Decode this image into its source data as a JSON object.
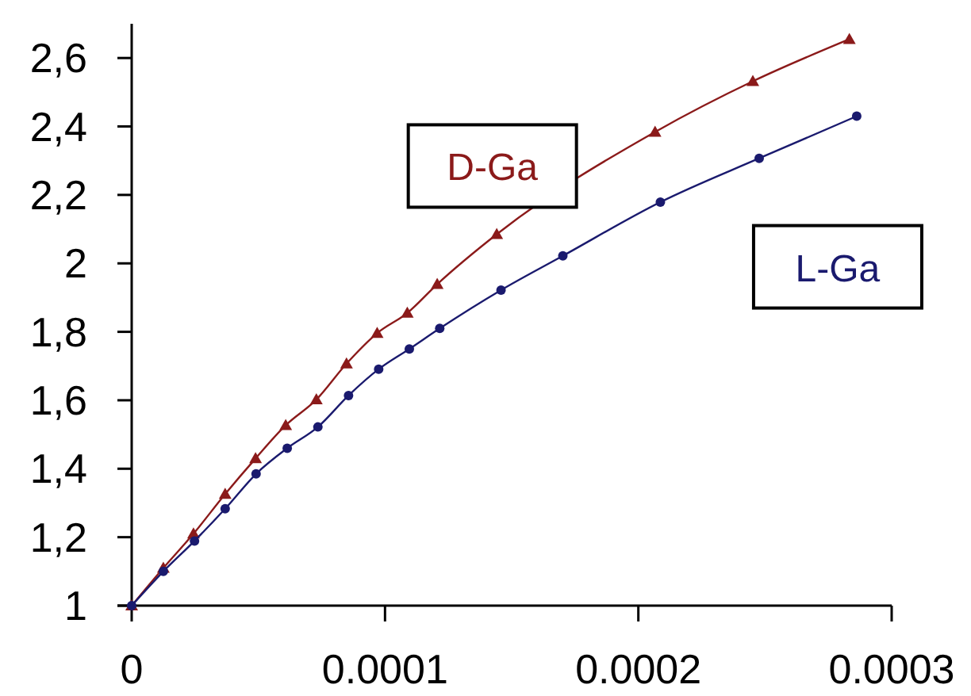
{
  "chart_data": {
    "type": "line",
    "xlim": [
      0,
      0.0003
    ],
    "xticks": [
      0,
      0.0001,
      0.0002,
      0.0003
    ],
    "ylim": [
      1,
      2.7
    ],
    "yticks": [
      {
        "value": 1,
        "label": "1"
      },
      {
        "value": 1.2,
        "label": "1,2"
      },
      {
        "value": 1.4,
        "label": "1,4"
      },
      {
        "value": 1.6,
        "label": "1,6"
      },
      {
        "value": 1.8,
        "label": "1,8"
      },
      {
        "value": 2,
        "label": "2"
      },
      {
        "value": 2.2,
        "label": "2,2"
      },
      {
        "value": 2.4,
        "label": "2,4"
      },
      {
        "value": 2.6,
        "label": "2,6"
      }
    ],
    "grid": false,
    "series": [
      {
        "name": "D-Ga",
        "color": "#8b1a1a",
        "marker": "triangle",
        "x": [
          0,
          1.25e-05,
          2.44e-05,
          3.69e-05,
          4.89e-05,
          6.08e-05,
          7.29e-05,
          8.48e-05,
          9.69e-05,
          0.0001088,
          0.0001206,
          0.0001441,
          0.0002066,
          0.0002452,
          0.0002833
        ],
        "values": [
          1,
          1.11,
          1.21,
          1.326,
          1.43,
          1.527,
          1.602,
          1.707,
          1.796,
          1.855,
          1.939,
          2.085,
          2.384,
          2.532,
          2.655
        ]
      },
      {
        "name": "L-Ga",
        "color": "#1a1a6e",
        "marker": "circle",
        "x": [
          0,
          1.25e-05,
          2.48e-05,
          3.69e-05,
          4.91e-05,
          6.14e-05,
          7.35e-05,
          8.56e-05,
          9.75e-05,
          0.0001096,
          0.0001216,
          0.0001458,
          0.0001702,
          0.0002087,
          0.0002477,
          0.0002862
        ],
        "values": [
          1,
          1.1,
          1.189,
          1.283,
          1.385,
          1.46,
          1.522,
          1.614,
          1.691,
          1.75,
          1.81,
          1.922,
          2.022,
          2.179,
          2.307,
          2.43
        ]
      }
    ]
  }
}
